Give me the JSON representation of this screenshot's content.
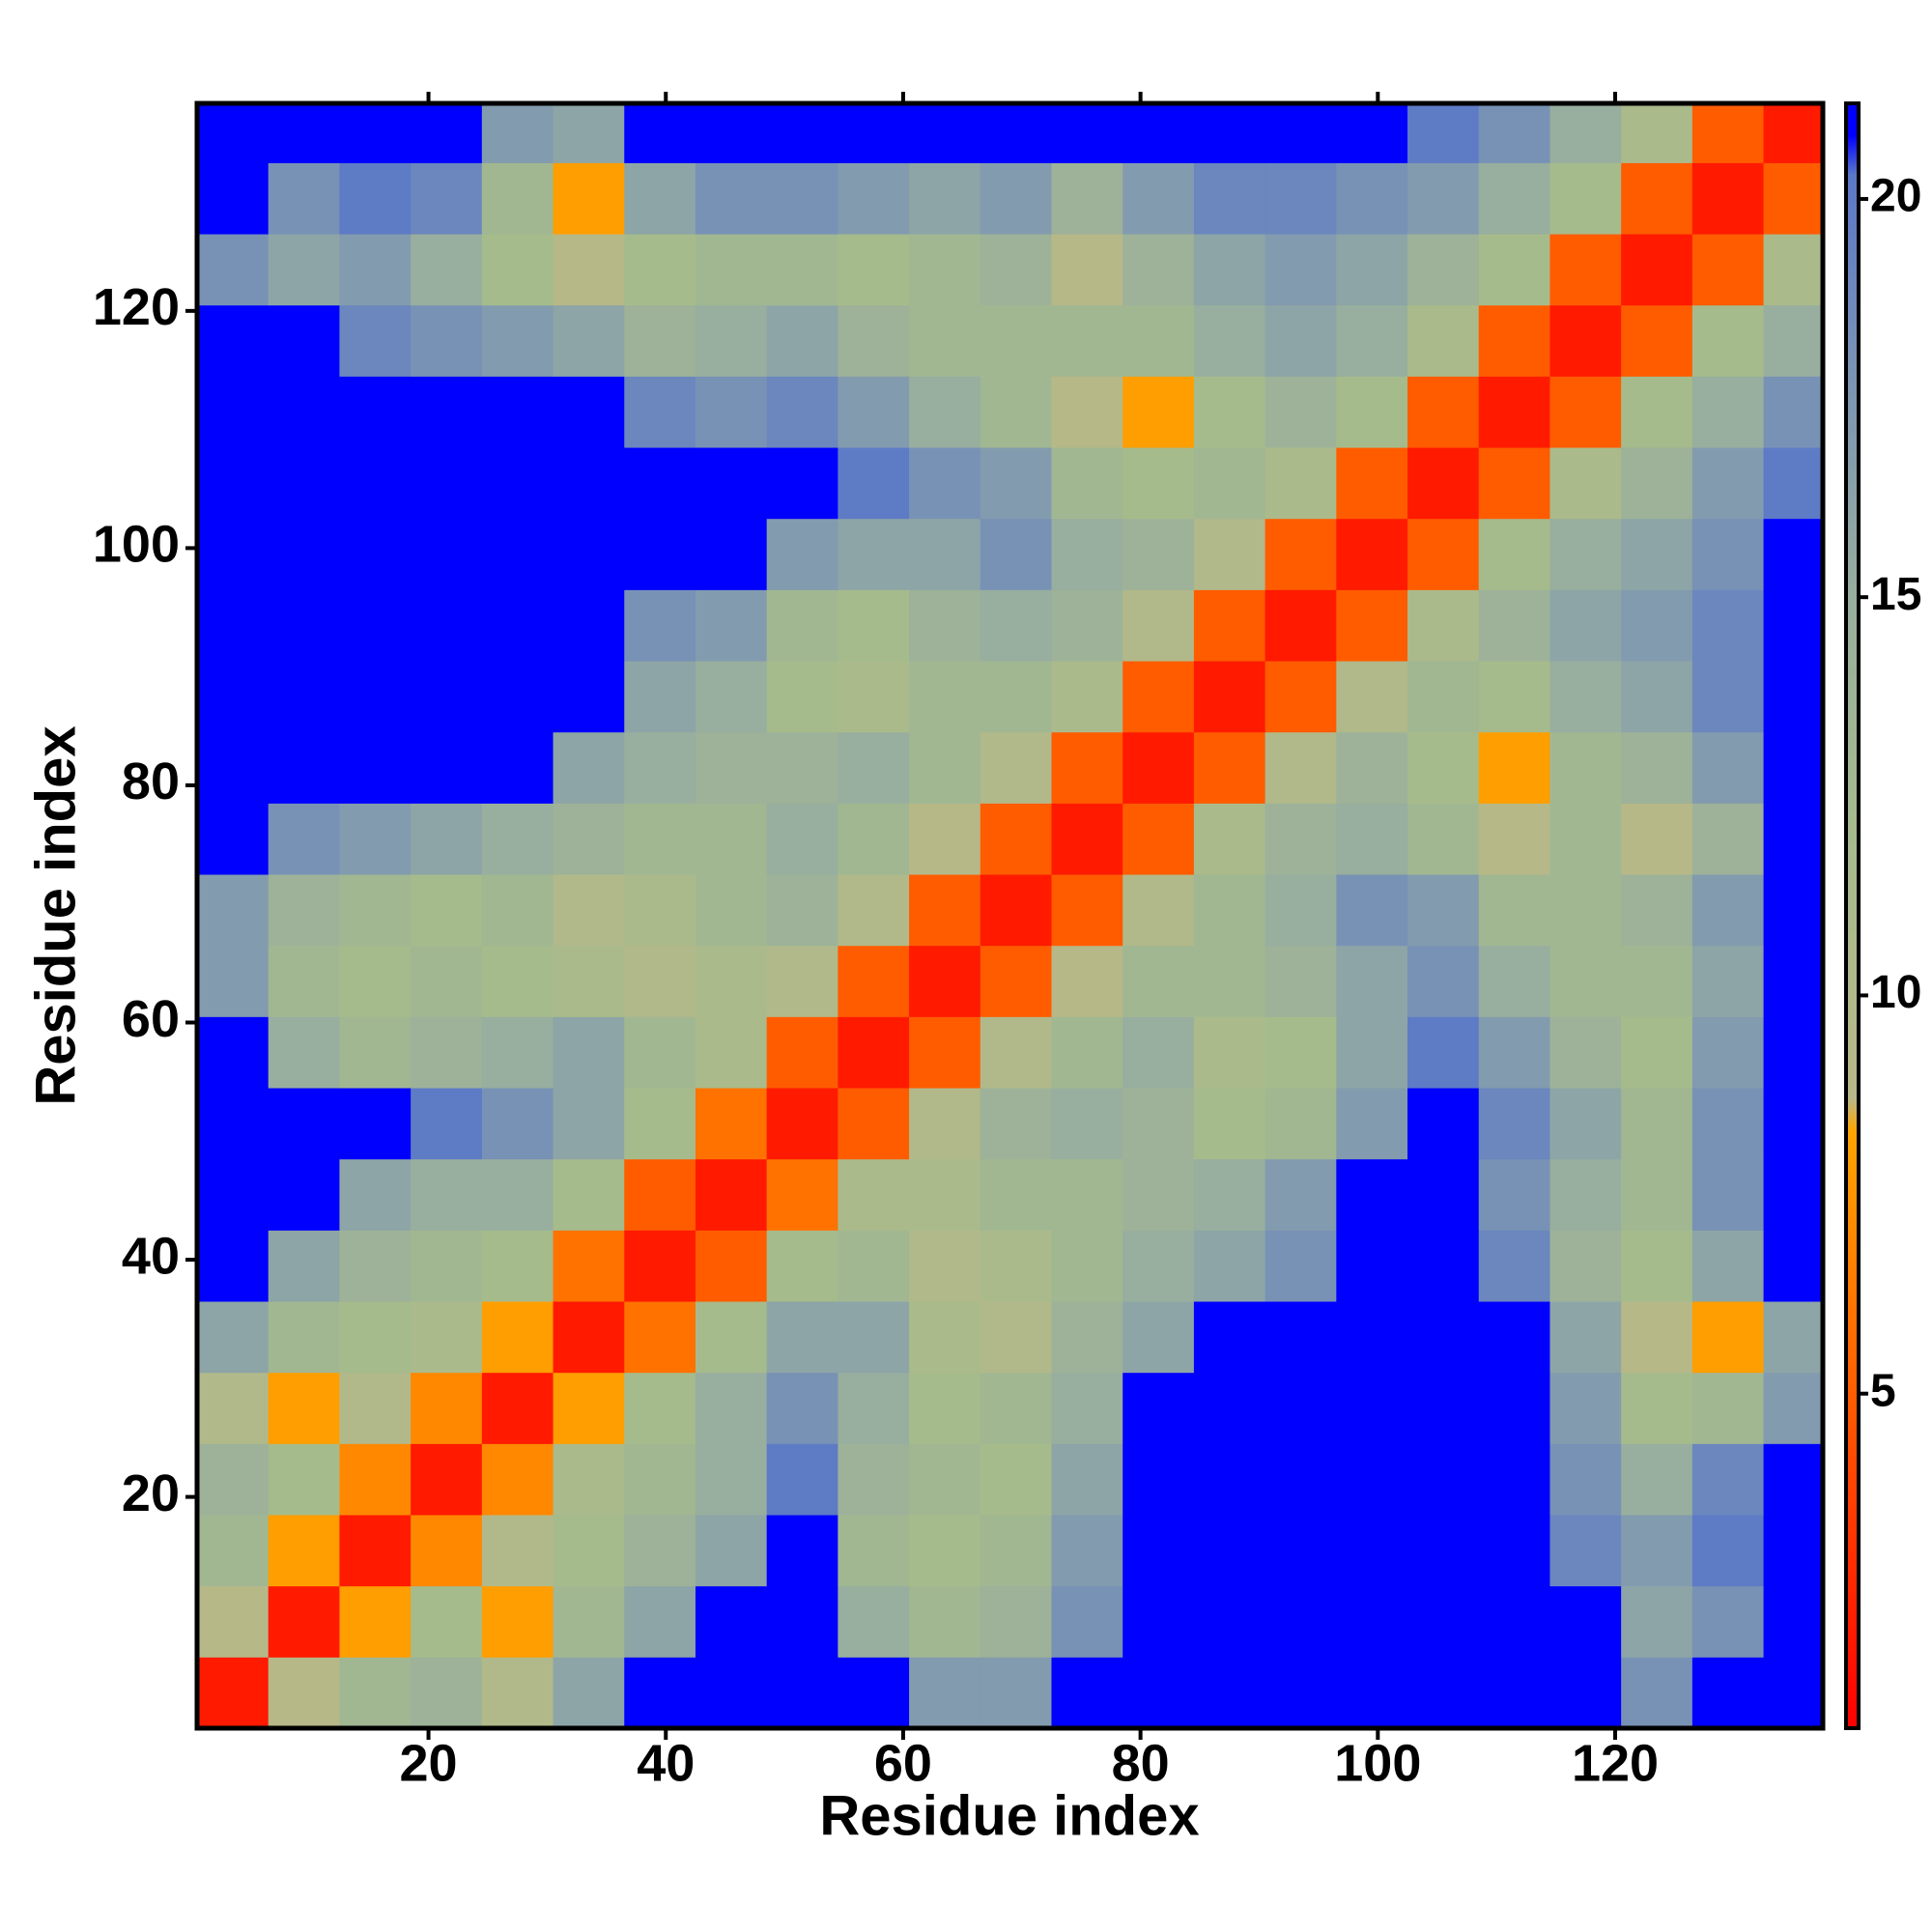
{
  "chart_data": {
    "type": "heatmap",
    "x_label": "Residue index",
    "y_label": "Residue index",
    "xbins": [
      0.5,
      6.5,
      12.5,
      18.5,
      24.5,
      30.5,
      36.5,
      42.5,
      48.5,
      54.5,
      60.5,
      66.5,
      72.5,
      78.5,
      84.5,
      90.5,
      96.5,
      102.5,
      108.5,
      114.5,
      120.5,
      126.5,
      132.5,
      137.5
    ],
    "ybins": [
      0.5,
      6.5,
      12.5,
      18.5,
      24.5,
      30.5,
      36.5,
      42.5,
      48.5,
      54.5,
      60.5,
      66.5,
      72.5,
      78.5,
      84.5,
      90.5,
      96.5,
      102.5,
      108.5,
      114.5,
      120.5,
      126.5,
      132.5,
      137.5
    ],
    "z": [
      [
        2,
        9,
        13,
        14,
        10,
        16,
        21,
        21,
        21,
        21,
        17,
        17,
        21,
        21,
        21,
        21,
        21,
        21,
        21,
        21,
        18,
        21,
        21
      ],
      [
        9,
        2,
        8,
        12,
        8,
        13,
        16,
        21,
        21,
        15,
        13,
        14,
        18,
        21,
        21,
        21,
        21,
        21,
        21,
        21,
        16,
        18,
        21
      ],
      [
        13,
        8,
        2,
        7,
        10,
        12,
        14,
        16,
        21,
        13,
        12,
        13,
        17,
        21,
        21,
        21,
        21,
        21,
        21,
        19,
        17,
        20,
        21
      ],
      [
        14,
        12,
        7,
        2,
        7,
        11,
        13,
        15,
        20,
        14,
        13,
        12,
        16,
        21,
        21,
        21,
        21,
        21,
        21,
        18,
        15,
        19,
        21
      ],
      [
        10,
        8,
        10,
        7,
        2,
        8,
        12,
        15,
        18,
        15,
        12,
        13,
        15,
        21,
        21,
        21,
        21,
        21,
        21,
        17,
        12,
        13,
        17
      ],
      [
        16,
        13,
        12,
        11,
        8,
        2,
        6,
        12,
        16,
        16,
        11,
        10,
        14,
        16,
        21,
        21,
        21,
        21,
        21,
        16,
        9,
        8,
        16
      ],
      [
        21,
        16,
        14,
        13,
        12,
        6,
        2,
        5,
        12,
        13,
        10,
        11,
        13,
        15,
        16,
        18,
        21,
        21,
        19,
        14,
        12,
        16,
        21
      ],
      [
        21,
        21,
        16,
        15,
        15,
        12,
        5,
        2,
        6,
        11,
        11,
        13,
        13,
        14,
        15,
        17,
        21,
        21,
        18,
        15,
        13,
        18,
        21
      ],
      [
        21,
        21,
        21,
        20,
        18,
        16,
        12,
        6,
        2,
        5,
        10,
        14,
        15,
        14,
        12,
        13,
        17,
        21,
        19,
        16,
        13,
        18,
        21
      ],
      [
        21,
        15,
        13,
        14,
        15,
        16,
        13,
        11,
        5,
        2,
        5,
        10,
        13,
        15,
        11,
        12,
        16,
        20,
        17,
        14,
        12,
        17,
        21
      ],
      [
        17,
        13,
        12,
        13,
        12,
        11,
        10,
        11,
        10,
        5,
        2,
        5,
        9,
        13,
        13,
        14,
        16,
        18,
        15,
        13,
        13,
        16,
        21
      ],
      [
        17,
        14,
        13,
        12,
        13,
        10,
        11,
        13,
        14,
        10,
        5,
        2,
        5,
        10,
        13,
        15,
        18,
        17,
        13,
        13,
        14,
        17,
        21
      ],
      [
        21,
        18,
        17,
        16,
        15,
        14,
        13,
        13,
        15,
        13,
        9,
        5,
        2,
        5,
        11,
        14,
        15,
        13,
        9,
        13,
        9,
        14,
        21
      ],
      [
        21,
        21,
        21,
        21,
        21,
        16,
        15,
        14,
        14,
        15,
        13,
        10,
        5,
        2,
        5,
        10,
        14,
        12,
        8,
        13,
        14,
        17,
        21
      ],
      [
        21,
        21,
        21,
        21,
        21,
        21,
        16,
        15,
        12,
        11,
        13,
        13,
        11,
        5,
        2,
        5,
        10,
        13,
        12,
        15,
        16,
        19,
        21
      ],
      [
        21,
        21,
        21,
        21,
        21,
        21,
        18,
        17,
        13,
        12,
        14,
        15,
        14,
        10,
        5,
        2,
        5,
        11,
        14,
        16,
        17,
        19,
        21
      ],
      [
        21,
        21,
        21,
        21,
        21,
        21,
        21,
        21,
        17,
        16,
        16,
        18,
        15,
        14,
        10,
        5,
        2,
        5,
        12,
        15,
        16,
        18,
        21
      ],
      [
        21,
        21,
        21,
        21,
        21,
        21,
        21,
        21,
        21,
        20,
        18,
        17,
        13,
        12,
        13,
        11,
        5,
        2,
        5,
        11,
        14,
        17,
        20
      ],
      [
        21,
        21,
        21,
        21,
        21,
        21,
        19,
        18,
        19,
        17,
        15,
        13,
        9,
        8,
        12,
        14,
        12,
        5,
        2,
        5,
        12,
        15,
        18
      ],
      [
        21,
        21,
        19,
        18,
        17,
        16,
        14,
        15,
        16,
        14,
        13,
        13,
        13,
        13,
        15,
        16,
        15,
        11,
        5,
        2,
        5,
        12,
        15
      ],
      [
        18,
        16,
        17,
        15,
        12,
        9,
        12,
        13,
        13,
        12,
        13,
        14,
        9,
        14,
        16,
        17,
        16,
        14,
        12,
        5,
        2,
        5,
        11
      ],
      [
        21,
        18,
        20,
        19,
        13,
        8,
        16,
        18,
        18,
        17,
        16,
        17,
        14,
        17,
        19,
        19,
        18,
        17,
        15,
        12,
        5,
        2,
        5
      ],
      [
        21,
        21,
        21,
        21,
        17,
        16,
        21,
        21,
        21,
        21,
        21,
        21,
        21,
        21,
        21,
        21,
        21,
        20,
        18,
        15,
        11,
        5,
        2
      ]
    ],
    "xlim": [
      0.5,
      137.5
    ],
    "ylim": [
      0.5,
      137.5
    ],
    "xticks": [
      20,
      40,
      60,
      80,
      100,
      120
    ],
    "yticks": [
      20,
      40,
      60,
      80,
      100,
      120
    ],
    "zlim": [
      0.8,
      21.2
    ],
    "zticks": [
      5,
      10,
      15,
      20
    ],
    "colorscale": [
      {
        "value": 0.8,
        "color": "#ff0000"
      },
      {
        "value": 8.3,
        "color": "#ffa500"
      },
      {
        "value": 8.7,
        "color": "#b8b888"
      },
      {
        "value": 12,
        "color": "#a6bb8c"
      },
      {
        "value": 15,
        "color": "#98ae9e"
      },
      {
        "value": 18,
        "color": "#7892b6"
      },
      {
        "value": 20.3,
        "color": "#5a78c8"
      },
      {
        "value": 20.8,
        "color": "#0000ff"
      }
    ]
  }
}
